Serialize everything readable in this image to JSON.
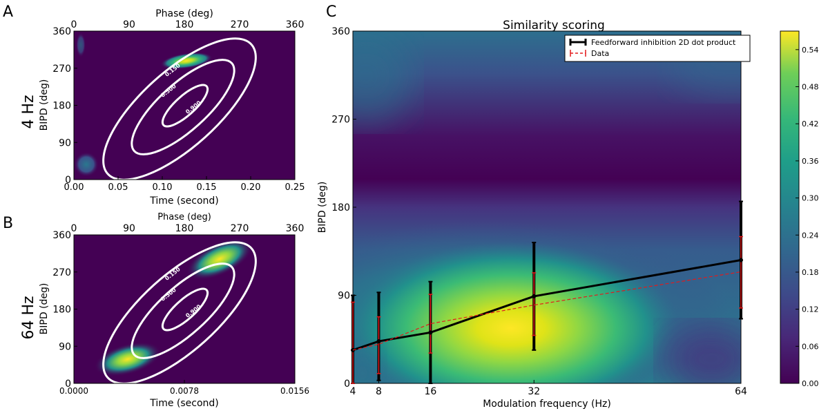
{
  "panels": {
    "a_letter": "A",
    "b_letter": "B",
    "c_letter": "C"
  },
  "chart_data": [
    {
      "type": "heatmap",
      "panel": "A",
      "side_label": "4 Hz",
      "xlabel": "Time (second)",
      "ylabel": "BIPD (deg)",
      "top_xlabel": "Phase (deg)",
      "xlim": [
        0,
        0.25
      ],
      "ylim": [
        0,
        360
      ],
      "xticks": [
        "0.00",
        "0.05",
        "0.10",
        "0.15",
        "0.20",
        "0.25"
      ],
      "yticks": [
        "0",
        "90",
        "180",
        "270",
        "360"
      ],
      "top_ticks": [
        "0",
        "90",
        "180",
        "270",
        "360"
      ],
      "contour_labels": [
        "0.150",
        "0.500",
        "0.900"
      ],
      "blobs": [
        {
          "x_frac": 0.52,
          "y": 290,
          "peak": 1.0
        },
        {
          "x_frac": 0.06,
          "y": 40,
          "peak": 0.35
        },
        {
          "x_frac": 0.04,
          "y": 320,
          "peak": 0.15
        }
      ]
    },
    {
      "type": "heatmap",
      "panel": "B",
      "side_label": "64 Hz",
      "xlabel": "Time (second)",
      "ylabel": "BIPD (deg)",
      "top_xlabel": "Phase (deg)",
      "xlim": [
        0,
        0.0156
      ],
      "ylim": [
        0,
        360
      ],
      "xticks": [
        "0.0000",
        "0.0078",
        "0.0156"
      ],
      "yticks": [
        "0",
        "90",
        "180",
        "270",
        "360"
      ],
      "top_ticks": [
        "0",
        "90",
        "180",
        "270",
        "360"
      ],
      "contour_labels": [
        "0.150",
        "0.500",
        "0.900"
      ],
      "blobs": [
        {
          "x_frac": 0.26,
          "y": 60,
          "peak": 1.0
        },
        {
          "x_frac": 0.72,
          "y": 300,
          "peak": 1.0
        }
      ]
    },
    {
      "type": "line",
      "panel": "C",
      "title": "Similarity scoring",
      "xlabel": "Modulation frequency (Hz)",
      "ylabel": "BIPD (deg)",
      "x_ticks": [
        4,
        8,
        16,
        32,
        64
      ],
      "yticks": [
        "0",
        "90",
        "180",
        "270",
        "360"
      ],
      "ylim": [
        0,
        360
      ],
      "legend_placement": "top-right",
      "series": [
        {
          "name": "Feedforward inhibition 2D dot product",
          "color": "#000000",
          "x": [
            4,
            8,
            16,
            32,
            64
          ],
          "y": [
            34,
            43,
            52,
            89,
            126
          ],
          "err_low": [
            0,
            3,
            0,
            34,
            66
          ],
          "err_high": [
            90,
            93,
            104,
            144,
            186
          ]
        },
        {
          "name": "Data",
          "color": "#e31a1c",
          "x": [
            4,
            8,
            16,
            32,
            64
          ],
          "y": [
            34,
            40,
            61,
            80,
            114
          ],
          "err_low": [
            0,
            10,
            31,
            49,
            77
          ],
          "err_high": [
            83,
            68,
            91,
            113,
            150
          ]
        }
      ],
      "colorbar": {
        "ticks": [
          "0.00",
          "0.06",
          "0.12",
          "0.18",
          "0.24",
          "0.30",
          "0.36",
          "0.42",
          "0.48",
          "0.54"
        ],
        "max": 0.57
      }
    }
  ]
}
